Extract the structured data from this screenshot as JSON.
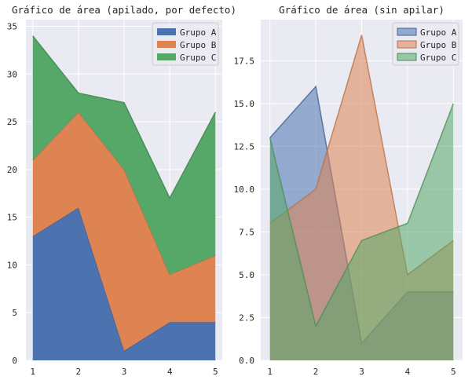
{
  "chart_data": [
    {
      "type": "area",
      "stacked": true,
      "title": "Gráfico de área (apilado, por defecto)",
      "x": [
        1,
        2,
        3,
        4,
        5
      ],
      "series": [
        {
          "name": "Grupo A",
          "values": [
            13,
            16,
            1,
            4,
            4
          ],
          "color": "#4c72b0"
        },
        {
          "name": "Grupo B",
          "values": [
            8,
            10,
            19,
            5,
            7
          ],
          "color": "#dd8452"
        },
        {
          "name": "Grupo C",
          "values": [
            13,
            2,
            7,
            8,
            15
          ],
          "color": "#55a868"
        }
      ],
      "xlim": [
        0.85,
        5.15
      ],
      "ylim": [
        0,
        35.7
      ],
      "xticks": [
        1,
        2,
        3,
        4,
        5
      ],
      "yticks": [
        0,
        5,
        10,
        15,
        20,
        25,
        30,
        35
      ],
      "ytick_labels": [
        "0",
        "5",
        "10",
        "15",
        "20",
        "25",
        "30",
        "35"
      ],
      "grid": true,
      "legend_position": "top-right"
    },
    {
      "type": "area",
      "stacked": false,
      "title": "Gráfico de área (sin apilar)",
      "x": [
        1,
        2,
        3,
        4,
        5
      ],
      "series": [
        {
          "name": "Grupo A",
          "values": [
            13,
            16,
            1,
            4,
            4
          ],
          "color": "#4c72b0"
        },
        {
          "name": "Grupo B",
          "values": [
            8,
            10,
            19,
            5,
            7
          ],
          "color": "#dd8452"
        },
        {
          "name": "Grupo C",
          "values": [
            13,
            2,
            7,
            8,
            15
          ],
          "color": "#55a868"
        }
      ],
      "alpha": 0.55,
      "xlim": [
        0.8,
        5.2
      ],
      "ylim": [
        0,
        19.9
      ],
      "xticks": [
        1,
        2,
        3,
        4,
        5
      ],
      "yticks": [
        0,
        2.5,
        5,
        7.5,
        10,
        12.5,
        15,
        17.5
      ],
      "ytick_labels": [
        "0.0",
        "2.5",
        "5.0",
        "7.5",
        "10.0",
        "12.5",
        "15.0",
        "17.5"
      ],
      "grid": true,
      "legend_position": "top-right"
    }
  ],
  "style": {
    "plot_background": "#eaeaf2",
    "grid_color": "#ffffff",
    "text_color": "#262626"
  }
}
